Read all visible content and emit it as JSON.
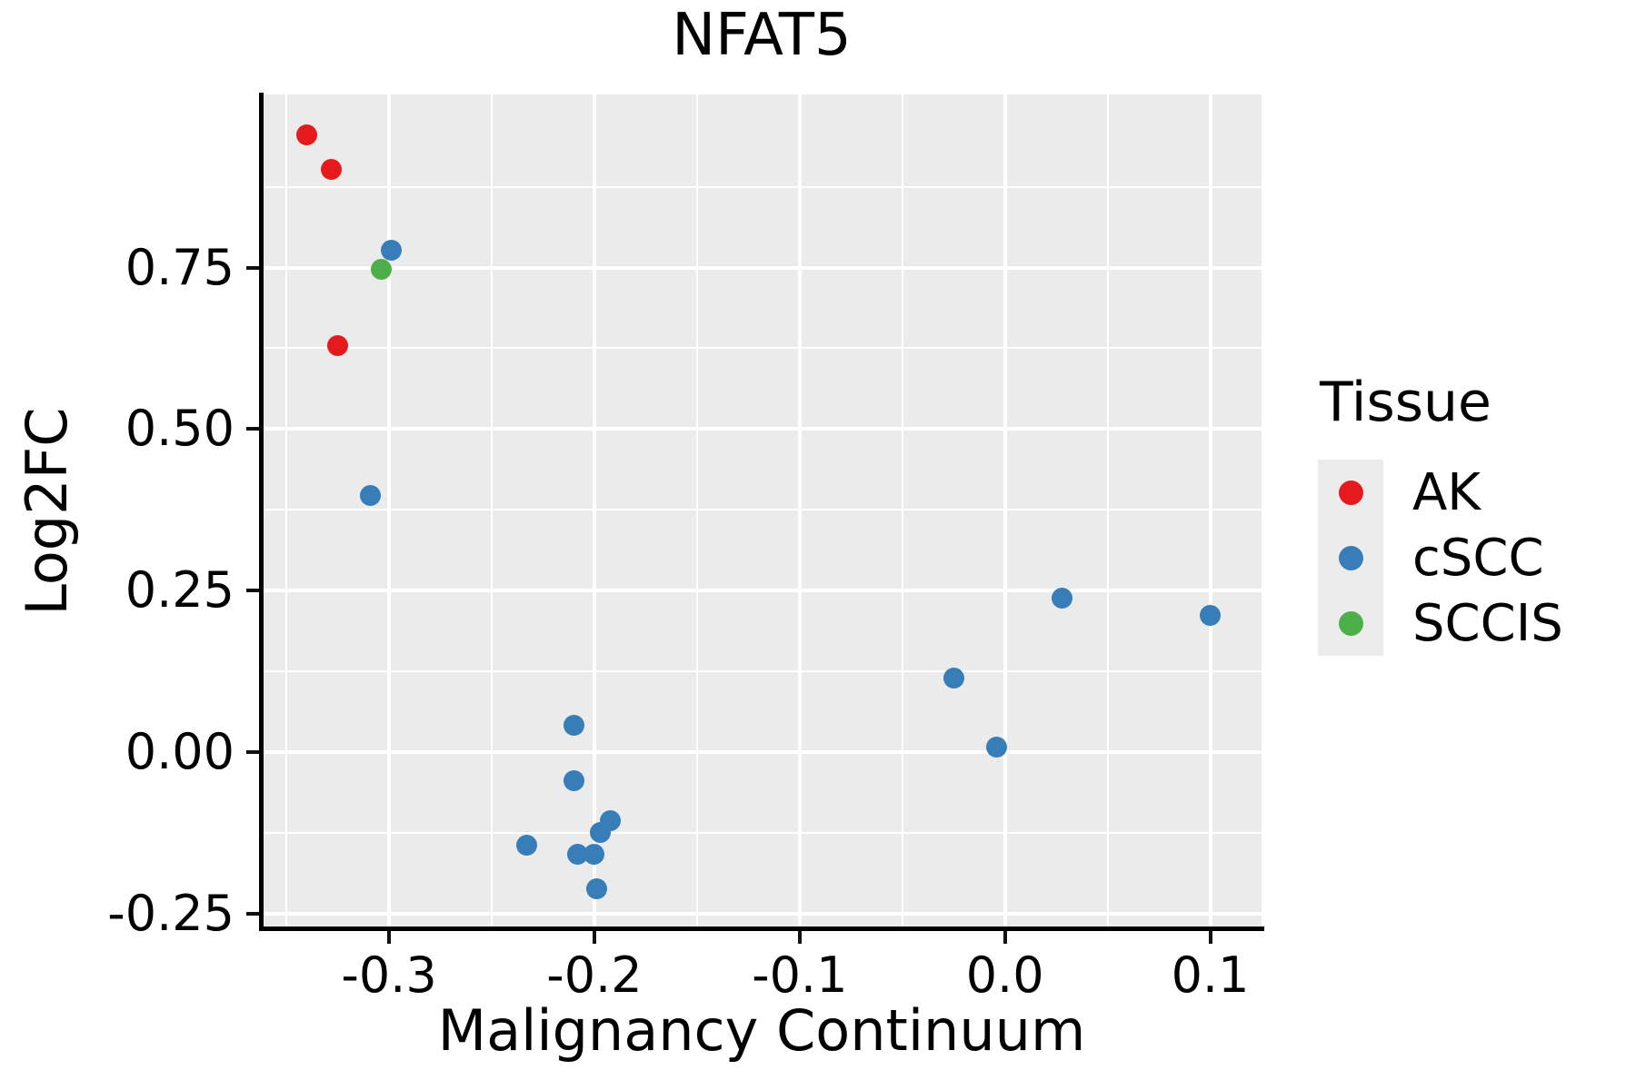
{
  "figure": {
    "title": "NFAT5"
  },
  "axes": {
    "x": {
      "label": "Malignancy Continuum"
    },
    "y": {
      "label": "Log2FC"
    }
  },
  "legend": {
    "title": "Tissue",
    "items": [
      {
        "label": "AK",
        "color": "#E41A1C"
      },
      {
        "label": "cSCC",
        "color": "#377EB8"
      },
      {
        "label": "SCCIS",
        "color": "#4DAF4A"
      }
    ]
  },
  "chart_data": {
    "type": "scatter",
    "title": "NFAT5",
    "xlabel": "Malignancy Continuum",
    "ylabel": "Log2FC",
    "xlim": [
      -0.362,
      0.125
    ],
    "ylim": [
      -0.273,
      1.018
    ],
    "grid": "on",
    "legend_position": "right",
    "x_ticks": [
      {
        "value": -0.3,
        "label": "-0.3"
      },
      {
        "value": -0.2,
        "label": "-0.2"
      },
      {
        "value": -0.1,
        "label": "-0.1"
      },
      {
        "value": 0.0,
        "label": "0.0"
      },
      {
        "value": 0.1,
        "label": "0.1"
      }
    ],
    "y_ticks": [
      {
        "value": 0.75,
        "label": "0.75"
      },
      {
        "value": 0.5,
        "label": "0.50"
      },
      {
        "value": 0.25,
        "label": "0.25"
      },
      {
        "value": 0.0,
        "label": "0.00"
      },
      {
        "value": -0.25,
        "label": "-0.25"
      }
    ],
    "x_minor_gridlines": [
      -0.35,
      -0.25,
      -0.15,
      -0.05,
      0.05
    ],
    "y_minor_gridlines": [
      0.875,
      0.625,
      0.375,
      0.125,
      -0.125
    ],
    "series": [
      {
        "name": "AK",
        "color": "#E41A1C",
        "points": [
          [
            -0.34,
            0.955
          ],
          [
            -0.328,
            0.902
          ],
          [
            -0.325,
            0.629
          ]
        ]
      },
      {
        "name": "cSCC",
        "color": "#377EB8",
        "points": [
          [
            -0.299,
            0.777
          ],
          [
            -0.309,
            0.397
          ],
          [
            -0.21,
            0.041
          ],
          [
            -0.21,
            -0.044
          ],
          [
            -0.192,
            -0.106
          ],
          [
            -0.197,
            -0.124
          ],
          [
            -0.233,
            -0.145
          ],
          [
            -0.208,
            -0.158
          ],
          [
            -0.2,
            -0.158
          ],
          [
            -0.199,
            -0.212
          ],
          [
            -0.025,
            0.114
          ],
          [
            -0.004,
            0.007
          ],
          [
            0.028,
            0.238
          ],
          [
            0.1,
            0.212
          ]
        ]
      },
      {
        "name": "SCCIS",
        "color": "#4DAF4A",
        "points": [
          [
            -0.304,
            0.747
          ]
        ]
      }
    ]
  }
}
